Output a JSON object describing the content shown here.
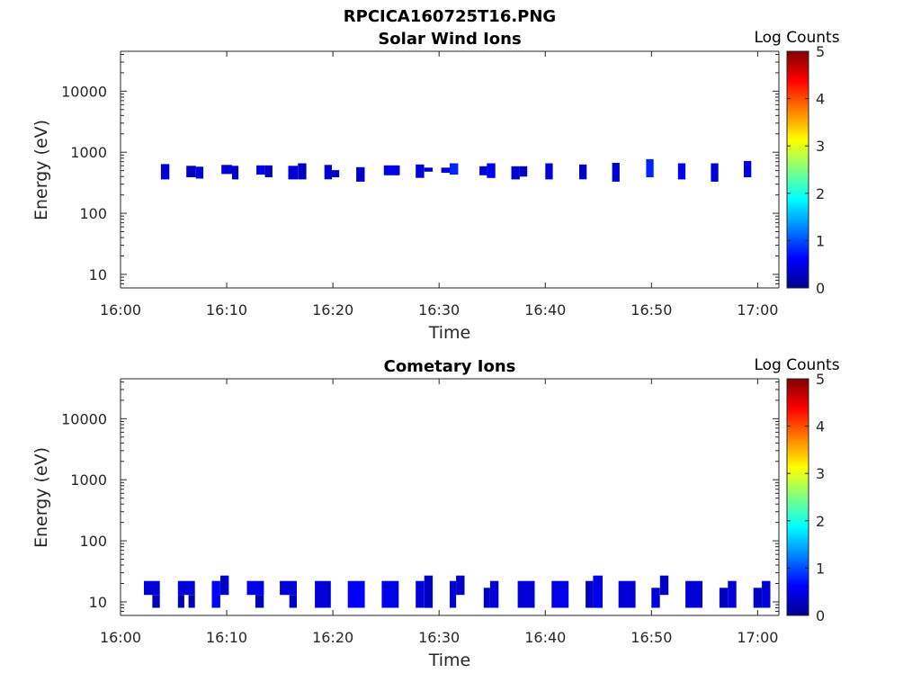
{
  "figure_title": "RPCICA160725T16.PNG",
  "colormap": [
    "#00008f",
    "#0000ff",
    "#0080ff",
    "#00ffff",
    "#80ff80",
    "#ffff00",
    "#ff8000",
    "#ff0000",
    "#800000"
  ],
  "chart_data": [
    {
      "type": "heatmap",
      "title": "Solar Wind Ions",
      "xlabel": "Time",
      "ylabel": "Energy (eV)",
      "x_ticks": [
        "16:00",
        "16:10",
        "16:20",
        "16:30",
        "16:40",
        "16:50",
        "17:00"
      ],
      "xlim_minutes": [
        0,
        62
      ],
      "y_scale": "log",
      "y_ticks": [
        10,
        100,
        1000,
        10000
      ],
      "y_tick_labels": [
        "10",
        "100",
        "1000",
        "10000"
      ],
      "ylim": [
        6,
        45000
      ],
      "colorbar": {
        "label": "Log Counts",
        "range": [
          0,
          5
        ],
        "ticks": [
          "0",
          "1",
          "2",
          "3",
          "4",
          "5"
        ]
      },
      "cells": [
        {
          "t0": 3.8,
          "t1": 4.6,
          "e_lo": 360,
          "e_hi": 640,
          "v": 0.4
        },
        {
          "t0": 6.2,
          "t1": 7.1,
          "e_lo": 390,
          "e_hi": 600,
          "v": 0.3
        },
        {
          "t0": 7.1,
          "t1": 7.8,
          "e_lo": 370,
          "e_hi": 580,
          "v": 0.4
        },
        {
          "t0": 9.5,
          "t1": 10.5,
          "e_lo": 440,
          "e_hi": 620,
          "v": 0.4
        },
        {
          "t0": 10.5,
          "t1": 11.1,
          "e_lo": 360,
          "e_hi": 600,
          "v": 0.3
        },
        {
          "t0": 12.8,
          "t1": 13.6,
          "e_lo": 430,
          "e_hi": 610,
          "v": 0.5
        },
        {
          "t0": 13.6,
          "t1": 14.3,
          "e_lo": 390,
          "e_hi": 610,
          "v": 0.3
        },
        {
          "t0": 15.8,
          "t1": 16.7,
          "e_lo": 360,
          "e_hi": 600,
          "v": 0.4
        },
        {
          "t0": 16.7,
          "t1": 17.5,
          "e_lo": 360,
          "e_hi": 660,
          "v": 0.3
        },
        {
          "t0": 19.2,
          "t1": 19.9,
          "e_lo": 360,
          "e_hi": 620,
          "v": 0.4
        },
        {
          "t0": 19.9,
          "t1": 20.6,
          "e_lo": 390,
          "e_hi": 510,
          "v": 0.3
        },
        {
          "t0": 22.2,
          "t1": 23.0,
          "e_lo": 330,
          "e_hi": 570,
          "v": 0.3
        },
        {
          "t0": 24.8,
          "t1": 26.3,
          "e_lo": 420,
          "e_hi": 610,
          "v": 0.5
        },
        {
          "t0": 27.8,
          "t1": 28.6,
          "e_lo": 380,
          "e_hi": 630,
          "v": 0.4
        },
        {
          "t0": 28.6,
          "t1": 29.4,
          "e_lo": 480,
          "e_hi": 560,
          "v": 0.3
        },
        {
          "t0": 30.2,
          "t1": 31.0,
          "e_lo": 460,
          "e_hi": 560,
          "v": 0.4
        },
        {
          "t0": 31.0,
          "t1": 31.8,
          "e_lo": 430,
          "e_hi": 660,
          "v": 0.8
        },
        {
          "t0": 33.8,
          "t1": 34.5,
          "e_lo": 420,
          "e_hi": 590,
          "v": 0.4
        },
        {
          "t0": 34.5,
          "t1": 35.3,
          "e_lo": 380,
          "e_hi": 660,
          "v": 0.6
        },
        {
          "t0": 36.8,
          "t1": 37.6,
          "e_lo": 360,
          "e_hi": 590,
          "v": 0.4
        },
        {
          "t0": 37.6,
          "t1": 38.3,
          "e_lo": 400,
          "e_hi": 590,
          "v": 0.3
        },
        {
          "t0": 40.0,
          "t1": 40.7,
          "e_lo": 360,
          "e_hi": 660,
          "v": 0.4
        },
        {
          "t0": 43.2,
          "t1": 43.9,
          "e_lo": 360,
          "e_hi": 630,
          "v": 0.3
        },
        {
          "t0": 46.3,
          "t1": 47.0,
          "e_lo": 330,
          "e_hi": 670,
          "v": 0.4
        },
        {
          "t0": 49.5,
          "t1": 50.2,
          "e_lo": 390,
          "e_hi": 770,
          "v": 0.8
        },
        {
          "t0": 52.5,
          "t1": 53.2,
          "e_lo": 360,
          "e_hi": 660,
          "v": 0.5
        },
        {
          "t0": 55.6,
          "t1": 56.3,
          "e_lo": 330,
          "e_hi": 660,
          "v": 0.4
        },
        {
          "t0": 58.7,
          "t1": 59.4,
          "e_lo": 390,
          "e_hi": 720,
          "v": 0.5
        }
      ]
    },
    {
      "type": "heatmap",
      "title": "Cometary Ions",
      "xlabel": "Time",
      "ylabel": "Energy (eV)",
      "x_ticks": [
        "16:00",
        "16:10",
        "16:20",
        "16:30",
        "16:40",
        "16:50",
        "17:00"
      ],
      "xlim_minutes": [
        0,
        62
      ],
      "y_scale": "log",
      "y_ticks": [
        10,
        100,
        1000,
        10000
      ],
      "y_tick_labels": [
        "10",
        "100",
        "1000",
        "10000"
      ],
      "ylim": [
        6,
        45000
      ],
      "colorbar": {
        "label": "Log Counts",
        "range": [
          0,
          5
        ],
        "ticks": [
          "0",
          "1",
          "2",
          "3",
          "4",
          "5"
        ]
      },
      "cells": [
        {
          "t0": 2.2,
          "t1": 3.7,
          "e_lo": 13,
          "e_hi": 22,
          "v": 0.4
        },
        {
          "t0": 3.0,
          "t1": 3.7,
          "e_lo": 8,
          "e_hi": 13,
          "v": 0.2
        },
        {
          "t0": 5.4,
          "t1": 7.0,
          "e_lo": 13,
          "e_hi": 22,
          "v": 0.4
        },
        {
          "t0": 5.4,
          "t1": 6.0,
          "e_lo": 8,
          "e_hi": 13,
          "v": 0.2
        },
        {
          "t0": 6.4,
          "t1": 7.0,
          "e_lo": 8,
          "e_hi": 13,
          "v": 0.2
        },
        {
          "t0": 8.6,
          "t1": 9.4,
          "e_lo": 8,
          "e_hi": 22,
          "v": 0.6
        },
        {
          "t0": 9.4,
          "t1": 10.2,
          "e_lo": 13,
          "e_hi": 27,
          "v": 0.3
        },
        {
          "t0": 11.9,
          "t1": 13.5,
          "e_lo": 13,
          "e_hi": 22,
          "v": 0.5
        },
        {
          "t0": 12.7,
          "t1": 13.5,
          "e_lo": 8,
          "e_hi": 13,
          "v": 0.2
        },
        {
          "t0": 15.0,
          "t1": 16.6,
          "e_lo": 13,
          "e_hi": 22,
          "v": 0.4
        },
        {
          "t0": 15.9,
          "t1": 16.6,
          "e_lo": 8,
          "e_hi": 13,
          "v": 0.3
        },
        {
          "t0": 18.3,
          "t1": 19.8,
          "e_lo": 8,
          "e_hi": 22,
          "v": 0.4
        },
        {
          "t0": 21.4,
          "t1": 23.0,
          "e_lo": 8,
          "e_hi": 22,
          "v": 0.6
        },
        {
          "t0": 24.6,
          "t1": 26.2,
          "e_lo": 8,
          "e_hi": 22,
          "v": 0.5
        },
        {
          "t0": 27.8,
          "t1": 28.6,
          "e_lo": 8,
          "e_hi": 22,
          "v": 0.4
        },
        {
          "t0": 28.6,
          "t1": 29.4,
          "e_lo": 8,
          "e_hi": 27,
          "v": 0.3
        },
        {
          "t0": 31.0,
          "t1": 31.6,
          "e_lo": 8,
          "e_hi": 22,
          "v": 0.4
        },
        {
          "t0": 31.6,
          "t1": 32.4,
          "e_lo": 13,
          "e_hi": 27,
          "v": 0.3
        },
        {
          "t0": 34.2,
          "t1": 34.8,
          "e_lo": 8,
          "e_hi": 17,
          "v": 0.3
        },
        {
          "t0": 34.8,
          "t1": 35.6,
          "e_lo": 8,
          "e_hi": 22,
          "v": 0.4
        },
        {
          "t0": 37.4,
          "t1": 39.0,
          "e_lo": 8,
          "e_hi": 22,
          "v": 0.4
        },
        {
          "t0": 40.6,
          "t1": 42.2,
          "e_lo": 8,
          "e_hi": 22,
          "v": 0.5
        },
        {
          "t0": 43.8,
          "t1": 44.5,
          "e_lo": 8,
          "e_hi": 22,
          "v": 0.3
        },
        {
          "t0": 44.5,
          "t1": 45.4,
          "e_lo": 8,
          "e_hi": 27,
          "v": 0.5
        },
        {
          "t0": 46.9,
          "t1": 48.5,
          "e_lo": 8,
          "e_hi": 22,
          "v": 0.4
        },
        {
          "t0": 50.0,
          "t1": 50.8,
          "e_lo": 8,
          "e_hi": 17,
          "v": 0.4
        },
        {
          "t0": 50.8,
          "t1": 51.6,
          "e_lo": 13,
          "e_hi": 27,
          "v": 0.3
        },
        {
          "t0": 53.2,
          "t1": 54.8,
          "e_lo": 8,
          "e_hi": 22,
          "v": 0.4
        },
        {
          "t0": 56.4,
          "t1": 57.2,
          "e_lo": 8,
          "e_hi": 17,
          "v": 0.3
        },
        {
          "t0": 57.2,
          "t1": 58.0,
          "e_lo": 8,
          "e_hi": 22,
          "v": 0.4
        },
        {
          "t0": 59.6,
          "t1": 60.4,
          "e_lo": 8,
          "e_hi": 17,
          "v": 0.3
        },
        {
          "t0": 60.4,
          "t1": 61.2,
          "e_lo": 8,
          "e_hi": 22,
          "v": 0.4
        }
      ]
    }
  ]
}
